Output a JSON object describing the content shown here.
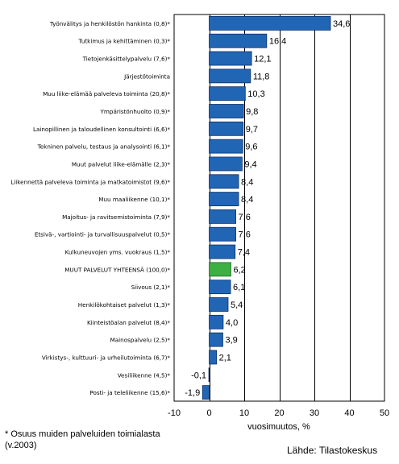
{
  "chart_data": {
    "type": "bar",
    "orientation": "horizontal",
    "categories": [
      "Työnvälitys ja henkilöstön hankinta (0,8)*",
      "Tutkimus ja kehittäminen (0,3)*",
      "Tietojenkäsittelypalvelu (7,6)*",
      "Järjestötoiminta",
      "Muu liike-elämää palveleva toiminta (20,8)*",
      "Ympäristönhuolto (0,9)*",
      "Lainopillinen ja taloudellinen konsultointi (6,6)*",
      "Tekninen palvelu, testaus ja analysointi (6,1)*",
      "Muut palvelut liike-elämälle (2,3)*",
      "Liikennettä palveleva toiminta ja matkatoimistot (9,6)*",
      "Muu maaliikenne (10,1)*",
      "Majoitus- ja ravitsemistoiminta (7,9)*",
      "Etsivä-, vartiointi- ja turvallisuuspalvelut (0,5)*",
      "Kulkuneuvojen yms. vuokraus (1,5)*",
      "MUUT PALVELUT YHTEENSÄ (100,0)*",
      "Siivous (2,1)*",
      "Henkilökohtaiset palvelut (1,3)*",
      "Kiinteistöalan palvelut (8,4)*",
      "Mainospalvelu (2,5)*",
      "Virkistys-, kulttuuri- ja urheilutoiminta (6,7)*",
      "Vesiliikenne (4,5)*",
      "Posti- ja teleliikenne (15,6)*"
    ],
    "values": [
      34.6,
      16.4,
      12.1,
      11.8,
      10.3,
      9.8,
      9.7,
      9.6,
      9.4,
      8.4,
      8.4,
      7.6,
      7.6,
      7.4,
      6.2,
      6.1,
      5.4,
      4.0,
      3.9,
      2.1,
      -0.1,
      -1.9
    ],
    "value_labels": [
      "34,6",
      "16,4",
      "12,1",
      "11,8",
      "10,3",
      "9,8",
      "9,7",
      "9,6",
      "9,4",
      "8,4",
      "8,4",
      "7,6",
      "7,6",
      "7,4",
      "6,2",
      "6,1",
      "5,4",
      "4,0",
      "3,9",
      "2,1",
      "-0,1",
      "-1,9"
    ],
    "highlight_index": 14,
    "xlabel": "vuosimuutos, %",
    "xlim": [
      -10,
      50
    ],
    "xticks": [
      -10,
      0,
      10,
      20,
      30,
      40,
      50
    ],
    "grid": true,
    "colors": {
      "bar": "#2166b5",
      "bar_edge": "#0f2f66",
      "highlight": "#3cb043",
      "highlight_edge": "#1e6b22",
      "grid": "#000000",
      "frame": "#000000"
    }
  },
  "footnote": "* Osuus muiden palveluiden toimialasta (v.2003)",
  "source": "Lähde: Tilastokeskus"
}
